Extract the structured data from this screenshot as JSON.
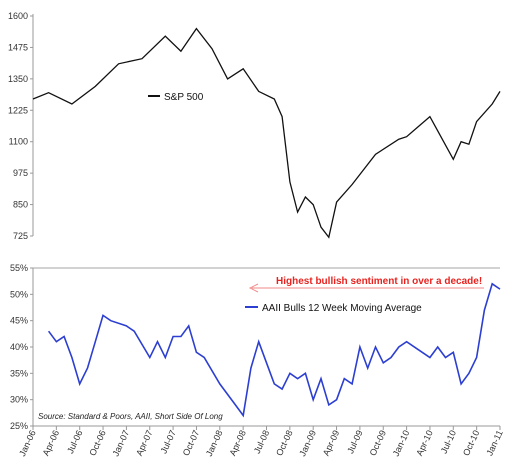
{
  "chart_data": [
    {
      "type": "line",
      "title": "",
      "xlabel": "",
      "ylabel": "",
      "ylim": [
        725,
        1600
      ],
      "yticks": [
        "1600",
        "1475",
        "1350",
        "1225",
        "1100",
        "975",
        "850",
        "725"
      ],
      "grid": false,
      "legend": "top-left",
      "series": [
        {
          "name": "S&P 500",
          "color": "#111111",
          "x": [
            "Jan-06",
            "Mar-06",
            "Jun-06",
            "Sep-06",
            "Dec-06",
            "Mar-07",
            "Jun-07",
            "Aug-07",
            "Oct-07",
            "Dec-07",
            "Feb-08",
            "Apr-08",
            "Jun-08",
            "Aug-08",
            "Sep-08",
            "Oct-08",
            "Nov-08",
            "Dec-08",
            "Jan-09",
            "Feb-09",
            "Mar-09",
            "Apr-09",
            "Jun-09",
            "Sep-09",
            "Dec-09",
            "Jan-10",
            "Apr-10",
            "Jul-10",
            "Aug-10",
            "Sep-10",
            "Oct-10",
            "Dec-10",
            "Jan-11"
          ],
          "values": [
            1270,
            1295,
            1250,
            1320,
            1410,
            1430,
            1520,
            1460,
            1550,
            1470,
            1350,
            1390,
            1300,
            1270,
            1200,
            940,
            820,
            880,
            850,
            760,
            720,
            860,
            930,
            1050,
            1110,
            1120,
            1200,
            1030,
            1100,
            1090,
            1180,
            1250,
            1300
          ]
        }
      ]
    },
    {
      "type": "line",
      "title": "",
      "xlabel": "",
      "ylabel": "",
      "ylim": [
        25,
        55
      ],
      "yticks": [
        "55%",
        "50%",
        "45%",
        "40%",
        "35%",
        "30%",
        "25%"
      ],
      "xticks": [
        "Jan-06",
        "Apr-06",
        "Jul-06",
        "Oct-06",
        "Jan-07",
        "Apr-07",
        "Jul-07",
        "Oct-07",
        "Jan-08",
        "Apr-08",
        "Jul-08",
        "Oct-08",
        "Jan-09",
        "Apr-09",
        "Jul-09",
        "Oct-09",
        "Jan-10",
        "Apr-10",
        "Jul-10",
        "Oct-10",
        "Jan-11"
      ],
      "grid": false,
      "legend": "top-left",
      "series": [
        {
          "name": "AAII Bulls 12 Week Moving Average",
          "color": "#2c3fd1",
          "x": [
            "Mar-06",
            "Apr-06",
            "May-06",
            "Jun-06",
            "Jul-06",
            "Aug-06",
            "Sep-06",
            "Oct-06",
            "Nov-06",
            "Jan-07",
            "Feb-07",
            "Apr-07",
            "May-07",
            "Jun-07",
            "Jul-07",
            "Aug-07",
            "Sep-07",
            "Oct-07",
            "Nov-07",
            "Jan-08",
            "Mar-08",
            "Apr-08",
            "May-08",
            "Jun-08",
            "Jul-08",
            "Aug-08",
            "Sep-08",
            "Oct-08",
            "Nov-08",
            "Dec-08",
            "Jan-09",
            "Feb-09",
            "Mar-09",
            "Apr-09",
            "May-09",
            "Jun-09",
            "Jul-09",
            "Aug-09",
            "Sep-09",
            "Oct-09",
            "Nov-09",
            "Dec-09",
            "Jan-10",
            "Mar-10",
            "Apr-10",
            "May-10",
            "Jun-10",
            "Jul-10",
            "Aug-10",
            "Sep-10",
            "Oct-10",
            "Nov-10",
            "Dec-10",
            "Jan-11"
          ],
          "values": [
            43,
            41,
            42,
            38,
            33,
            36,
            41,
            46,
            45,
            44,
            43,
            38,
            41,
            38,
            42,
            42,
            44,
            39,
            38,
            33,
            29,
            27,
            36,
            41,
            37,
            33,
            32,
            35,
            34,
            35,
            30,
            34,
            29,
            30,
            34,
            33,
            40,
            36,
            40,
            37,
            38,
            40,
            41,
            39,
            38,
            40,
            38,
            39,
            33,
            35,
            38,
            47,
            52,
            51
          ]
        }
      ],
      "annotations": [
        "Highest bullish sentiment in over a decade!"
      ],
      "source": "Source: Standard & Poors, AAII, Short Side Of Long"
    }
  ]
}
